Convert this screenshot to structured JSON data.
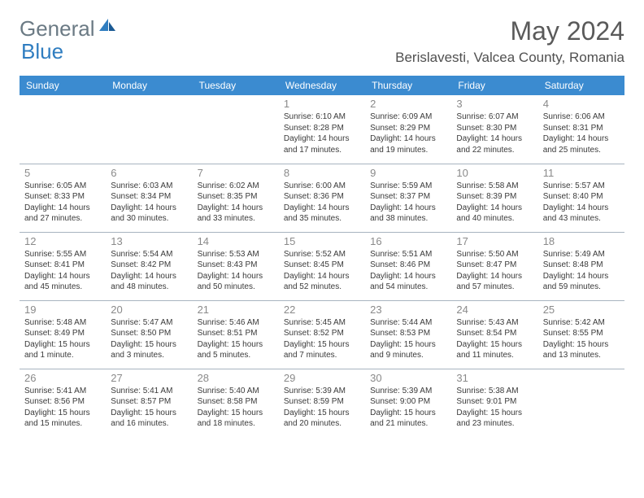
{
  "logo": {
    "part1": "General",
    "part2": "Blue"
  },
  "header": {
    "month_title": "May 2024",
    "location": "Berislavesti, Valcea County, Romania"
  },
  "colors": {
    "header_bg": "#3b8bd0",
    "header_text": "#ffffff",
    "logo_gray": "#6b7a84",
    "logo_blue": "#2f7dc0",
    "title_gray": "#5a5a5a",
    "cell_border": "#a8b4c0"
  },
  "day_headers": [
    "Sunday",
    "Monday",
    "Tuesday",
    "Wednesday",
    "Thursday",
    "Friday",
    "Saturday"
  ],
  "weeks": [
    [
      null,
      null,
      null,
      {
        "n": "1",
        "sr": "6:10 AM",
        "ss": "8:28 PM",
        "dl": "14 hours and 17 minutes."
      },
      {
        "n": "2",
        "sr": "6:09 AM",
        "ss": "8:29 PM",
        "dl": "14 hours and 19 minutes."
      },
      {
        "n": "3",
        "sr": "6:07 AM",
        "ss": "8:30 PM",
        "dl": "14 hours and 22 minutes."
      },
      {
        "n": "4",
        "sr": "6:06 AM",
        "ss": "8:31 PM",
        "dl": "14 hours and 25 minutes."
      }
    ],
    [
      {
        "n": "5",
        "sr": "6:05 AM",
        "ss": "8:33 PM",
        "dl": "14 hours and 27 minutes."
      },
      {
        "n": "6",
        "sr": "6:03 AM",
        "ss": "8:34 PM",
        "dl": "14 hours and 30 minutes."
      },
      {
        "n": "7",
        "sr": "6:02 AM",
        "ss": "8:35 PM",
        "dl": "14 hours and 33 minutes."
      },
      {
        "n": "8",
        "sr": "6:00 AM",
        "ss": "8:36 PM",
        "dl": "14 hours and 35 minutes."
      },
      {
        "n": "9",
        "sr": "5:59 AM",
        "ss": "8:37 PM",
        "dl": "14 hours and 38 minutes."
      },
      {
        "n": "10",
        "sr": "5:58 AM",
        "ss": "8:39 PM",
        "dl": "14 hours and 40 minutes."
      },
      {
        "n": "11",
        "sr": "5:57 AM",
        "ss": "8:40 PM",
        "dl": "14 hours and 43 minutes."
      }
    ],
    [
      {
        "n": "12",
        "sr": "5:55 AM",
        "ss": "8:41 PM",
        "dl": "14 hours and 45 minutes."
      },
      {
        "n": "13",
        "sr": "5:54 AM",
        "ss": "8:42 PM",
        "dl": "14 hours and 48 minutes."
      },
      {
        "n": "14",
        "sr": "5:53 AM",
        "ss": "8:43 PM",
        "dl": "14 hours and 50 minutes."
      },
      {
        "n": "15",
        "sr": "5:52 AM",
        "ss": "8:45 PM",
        "dl": "14 hours and 52 minutes."
      },
      {
        "n": "16",
        "sr": "5:51 AM",
        "ss": "8:46 PM",
        "dl": "14 hours and 54 minutes."
      },
      {
        "n": "17",
        "sr": "5:50 AM",
        "ss": "8:47 PM",
        "dl": "14 hours and 57 minutes."
      },
      {
        "n": "18",
        "sr": "5:49 AM",
        "ss": "8:48 PM",
        "dl": "14 hours and 59 minutes."
      }
    ],
    [
      {
        "n": "19",
        "sr": "5:48 AM",
        "ss": "8:49 PM",
        "dl": "15 hours and 1 minute."
      },
      {
        "n": "20",
        "sr": "5:47 AM",
        "ss": "8:50 PM",
        "dl": "15 hours and 3 minutes."
      },
      {
        "n": "21",
        "sr": "5:46 AM",
        "ss": "8:51 PM",
        "dl": "15 hours and 5 minutes."
      },
      {
        "n": "22",
        "sr": "5:45 AM",
        "ss": "8:52 PM",
        "dl": "15 hours and 7 minutes."
      },
      {
        "n": "23",
        "sr": "5:44 AM",
        "ss": "8:53 PM",
        "dl": "15 hours and 9 minutes."
      },
      {
        "n": "24",
        "sr": "5:43 AM",
        "ss": "8:54 PM",
        "dl": "15 hours and 11 minutes."
      },
      {
        "n": "25",
        "sr": "5:42 AM",
        "ss": "8:55 PM",
        "dl": "15 hours and 13 minutes."
      }
    ],
    [
      {
        "n": "26",
        "sr": "5:41 AM",
        "ss": "8:56 PM",
        "dl": "15 hours and 15 minutes."
      },
      {
        "n": "27",
        "sr": "5:41 AM",
        "ss": "8:57 PM",
        "dl": "15 hours and 16 minutes."
      },
      {
        "n": "28",
        "sr": "5:40 AM",
        "ss": "8:58 PM",
        "dl": "15 hours and 18 minutes."
      },
      {
        "n": "29",
        "sr": "5:39 AM",
        "ss": "8:59 PM",
        "dl": "15 hours and 20 minutes."
      },
      {
        "n": "30",
        "sr": "5:39 AM",
        "ss": "9:00 PM",
        "dl": "15 hours and 21 minutes."
      },
      {
        "n": "31",
        "sr": "5:38 AM",
        "ss": "9:01 PM",
        "dl": "15 hours and 23 minutes."
      },
      null
    ]
  ],
  "labels": {
    "sunrise": "Sunrise:",
    "sunset": "Sunset:",
    "daylight": "Daylight:"
  }
}
